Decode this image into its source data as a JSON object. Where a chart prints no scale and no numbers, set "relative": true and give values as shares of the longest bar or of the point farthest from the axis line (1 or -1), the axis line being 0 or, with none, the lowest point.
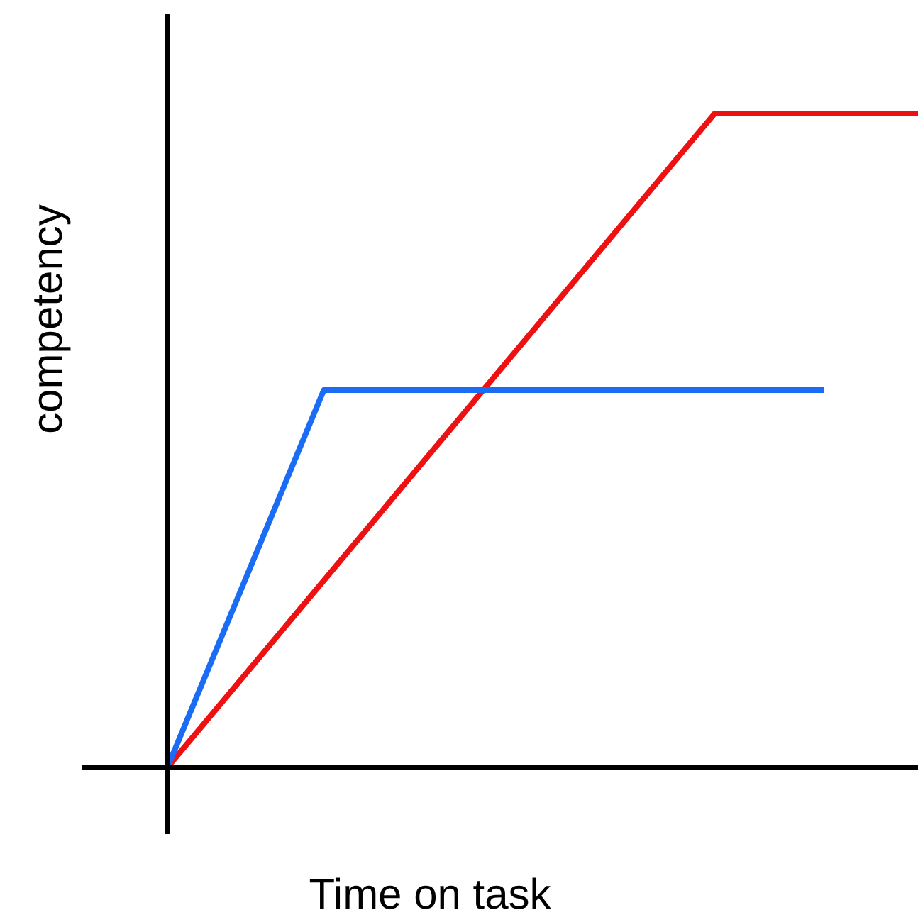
{
  "chart_data": {
    "type": "line",
    "relative": true,
    "xlabel": "Time on task",
    "ylabel": "competency",
    "legend": false,
    "marker": "none",
    "line_style": "solid",
    "categories": [
      null,
      null,
      null,
      null,
      null,
      null,
      null,
      null,
      null,
      null,
      null,
      null,
      null,
      null,
      null,
      null,
      null,
      null,
      null,
      null,
      null,
      null,
      null,
      null,
      null,
      null,
      null,
      null,
      null,
      null,
      null,
      null,
      null,
      null,
      null,
      null,
      null,
      null,
      null,
      null,
      null,
      null,
      null,
      null,
      null,
      null,
      null,
      null,
      null
    ],
    "series": [
      {
        "color": "#1a6cf5",
        "values": [
          0,
          null,
          null,
          null,
          null,
          null,
          null,
          null,
          null,
          null,
          0.577,
          null,
          null,
          null,
          null,
          null,
          null,
          null,
          null,
          null,
          null,
          null,
          null,
          null,
          null,
          null,
          null,
          null,
          null,
          null,
          null,
          null,
          null,
          null,
          null,
          null,
          null,
          null,
          null,
          null,
          null,
          null,
          0.577,
          null,
          null,
          null,
          null,
          null,
          null
        ]
      },
      {
        "color": "#ee1111",
        "values": [
          0,
          null,
          null,
          null,
          null,
          null,
          null,
          null,
          null,
          null,
          null,
          null,
          null,
          null,
          null,
          null,
          null,
          null,
          null,
          null,
          null,
          null,
          null,
          null,
          null,
          null,
          null,
          null,
          null,
          null,
          null,
          null,
          null,
          null,
          null,
          1,
          null,
          null,
          null,
          null,
          null,
          null,
          null,
          null,
          null,
          null,
          null,
          null,
          1
        ]
      }
    ]
  }
}
